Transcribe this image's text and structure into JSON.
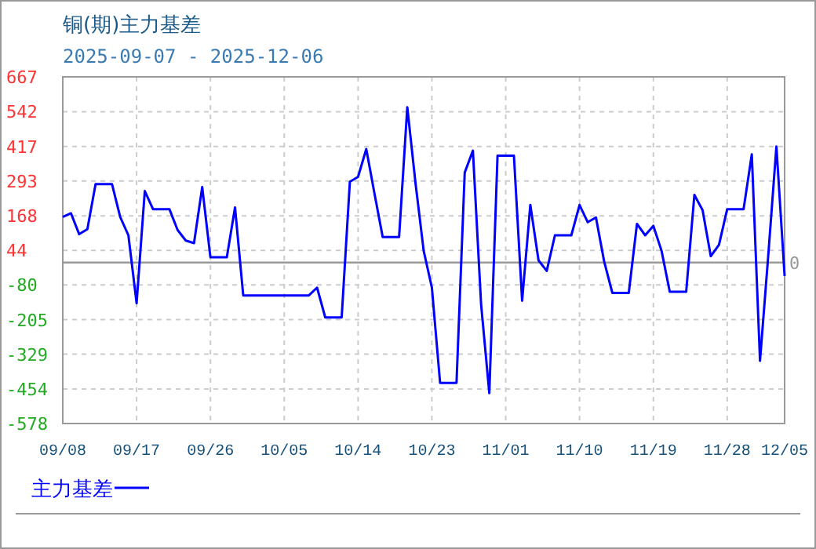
{
  "chart_data": {
    "type": "line",
    "title": "铜(期)主力基差",
    "subtitle": "2025-09-07 - 2025-12-06",
    "x": [
      "2025-09-08",
      "2025-09-09",
      "2025-09-10",
      "2025-09-11",
      "2025-09-12",
      "2025-09-14",
      "2025-09-15",
      "2025-09-16",
      "2025-09-17",
      "2025-09-18",
      "2025-09-19",
      "2025-09-21",
      "2025-09-22",
      "2025-09-23",
      "2025-09-24",
      "2025-09-25",
      "2025-09-26",
      "2025-09-28",
      "2025-09-29",
      "2025-09-30",
      "2025-10-08",
      "2025-10-09",
      "2025-10-10",
      "2025-10-12",
      "2025-10-13",
      "2025-10-14",
      "2025-10-15",
      "2025-10-16",
      "2025-10-17",
      "2025-10-19",
      "2025-10-20",
      "2025-10-21",
      "2025-10-22",
      "2025-10-23",
      "2025-10-24",
      "2025-10-26",
      "2025-10-27",
      "2025-10-28",
      "2025-10-29",
      "2025-10-30",
      "2025-10-31",
      "2025-11-02",
      "2025-11-03",
      "2025-11-04",
      "2025-11-05",
      "2025-11-06",
      "2025-11-07",
      "2025-11-09",
      "2025-11-10",
      "2025-11-11",
      "2025-11-12",
      "2025-11-13",
      "2025-11-14",
      "2025-11-16",
      "2025-11-17",
      "2025-11-18",
      "2025-11-19",
      "2025-11-20",
      "2025-11-21",
      "2025-11-23",
      "2025-11-24",
      "2025-11-25",
      "2025-11-26",
      "2025-11-27",
      "2025-11-28",
      "2025-11-30",
      "2025-12-01",
      "2025-12-02",
      "2025-12-03",
      "2025-12-04",
      "2025-12-05"
    ],
    "series": [
      {
        "name": "主力基差",
        "color": "#0000ff",
        "values": [
          164,
          177,
          102,
          120,
          282,
          282,
          164,
          98,
          -146,
          257,
          192,
          192,
          117,
          79,
          70,
          271,
          19,
          19,
          198,
          -118,
          -118,
          -90,
          -197,
          -197,
          290,
          308,
          408,
          248,
          92,
          92,
          558,
          286,
          42,
          -90,
          -432,
          -432,
          323,
          402,
          -150,
          -469,
          384,
          384,
          -137,
          207,
          8,
          -30,
          98,
          98,
          207,
          145,
          162,
          4,
          -109,
          -109,
          139,
          98,
          132,
          42,
          -105,
          -105,
          243,
          188,
          23,
          64,
          192,
          192,
          389,
          -353,
          24,
          417,
          -48
        ]
      }
    ],
    "xlim": [
      "2025-09-08",
      "2025-12-05"
    ],
    "xticks": [
      {
        "value": "2025-09-08",
        "label": "09/08"
      },
      {
        "value": "2025-09-17",
        "label": "09/17"
      },
      {
        "value": "2025-09-26",
        "label": "09/26"
      },
      {
        "value": "2025-10-05",
        "label": "10/05"
      },
      {
        "value": "2025-10-14",
        "label": "10/14"
      },
      {
        "value": "2025-10-23",
        "label": "10/23"
      },
      {
        "value": "2025-11-01",
        "label": "11/01"
      },
      {
        "value": "2025-11-10",
        "label": "11/10"
      },
      {
        "value": "2025-11-19",
        "label": "11/19"
      },
      {
        "value": "2025-11-28",
        "label": "11/28"
      },
      {
        "value": "2025-12-05",
        "label": "12/05"
      }
    ],
    "ylim": [
      -578,
      667
    ],
    "yticks": [
      667,
      542,
      417,
      293,
      168,
      44,
      -80,
      -205,
      -329,
      -454,
      -578
    ],
    "grid": true,
    "legend": "bottom",
    "ref_lines": [
      {
        "axis": "y",
        "value": 0,
        "label": "0",
        "color": "#999999"
      }
    ]
  }
}
